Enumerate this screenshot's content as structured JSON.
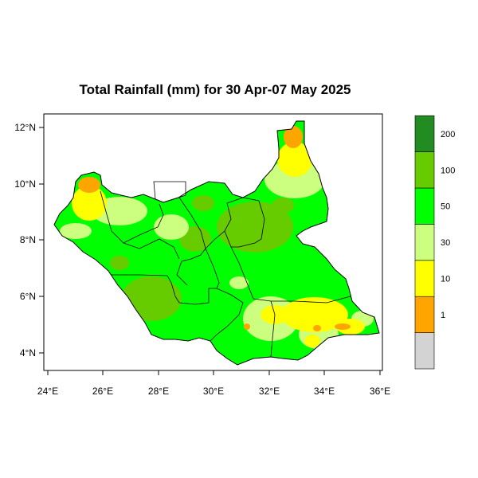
{
  "title": "Total Rainfall (mm) for 30 Apr-07 May 2025",
  "x_axis": {
    "tick_labels": [
      "24°E",
      "26°E",
      "28°E",
      "30°E",
      "32°E",
      "34°E",
      "36°E"
    ]
  },
  "y_axis": {
    "tick_labels": [
      "4°N",
      "6°N",
      "8°N",
      "10°N",
      "12°N"
    ]
  },
  "legend": {
    "levels": [
      {
        "label": "",
        "color": "#d3d3d3"
      },
      {
        "label": "1",
        "color": "#ffa500"
      },
      {
        "label": "10",
        "color": "#ffff00"
      },
      {
        "label": "30",
        "color": "#ccff80"
      },
      {
        "label": "50",
        "color": "#00ff00"
      },
      {
        "label": "100",
        "color": "#66cc00"
      },
      {
        "label": "200",
        "color": "#228b22"
      }
    ]
  }
}
